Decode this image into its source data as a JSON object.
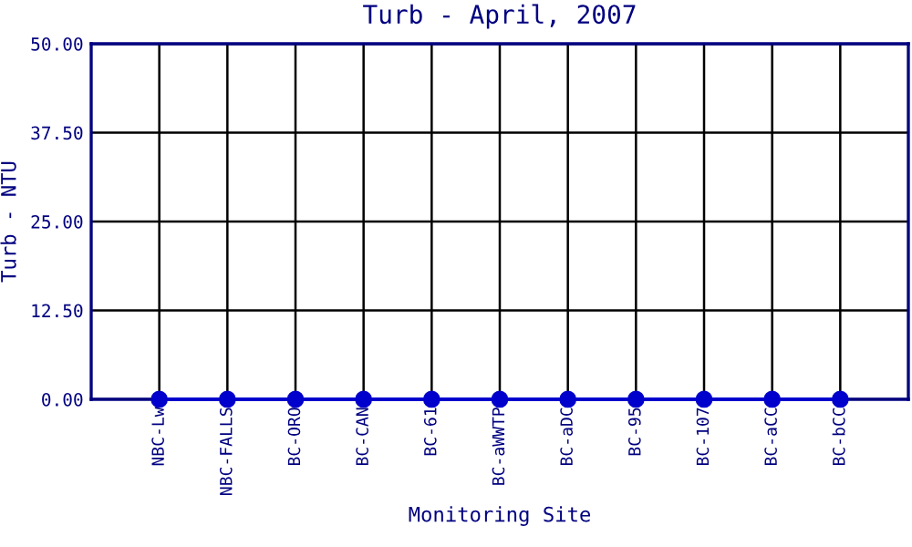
{
  "chart_data": {
    "type": "line",
    "title": "Turb - April, 2007",
    "xlabel": "Monitoring Site",
    "ylabel": "Turb - NTU",
    "categories": [
      "NBC-Lw",
      "NBC-FALLS",
      "BC-ORO",
      "BC-CAN",
      "BC-61",
      "BC-aWWTP",
      "BC-aDC",
      "BC-95",
      "BC-107",
      "BC-aCC",
      "BC-bCC"
    ],
    "series": [
      {
        "color": "#0000cc",
        "values": [
          0,
          0,
          0,
          0,
          0,
          0,
          0,
          0,
          0,
          0,
          0
        ]
      }
    ],
    "ylim": [
      0,
      50
    ],
    "yticks": [
      {
        "value": 0,
        "label": "0.00"
      },
      {
        "value": 12.5,
        "label": "12.50"
      },
      {
        "value": 25,
        "label": "25.00"
      },
      {
        "value": 37.5,
        "label": "37.50"
      },
      {
        "value": 50,
        "label": "50.00"
      }
    ],
    "grid": true,
    "marker": "circle",
    "line_style": "solid"
  }
}
